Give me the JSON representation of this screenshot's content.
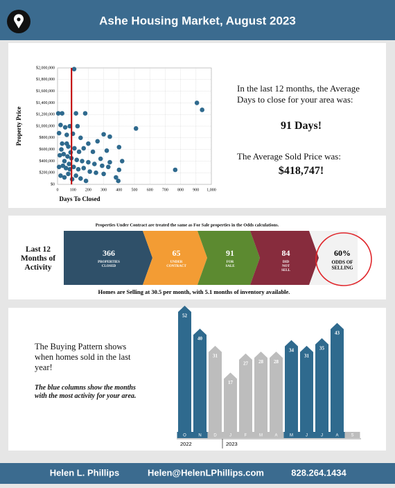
{
  "header": {
    "title": "Ashe Housing Market, August 2023"
  },
  "stats": {
    "days_intro": "In the last 12 months, the Average Days to close for your area was:",
    "days": "91 Days!",
    "price_intro": "The Average Sold Price was:",
    "price": "$418,747!"
  },
  "activity": {
    "note": "Properties Under Contract are treated the same as For Sale properties in the Odds calculations.",
    "label": "Last 12 Months of Activity",
    "steps": [
      {
        "value": "366",
        "label": "PROPERTIES CLOSED",
        "color": "#2f5069"
      },
      {
        "value": "65",
        "label": "UNDER CONTRACT",
        "color": "#f39c34"
      },
      {
        "value": "91",
        "label": "FOR SALE",
        "color": "#5c8a30"
      },
      {
        "value": "84",
        "label": "DID NOT SELL",
        "color": "#872c3d"
      }
    ],
    "odds": {
      "value": "60%",
      "label": "ODDS OF SELLING"
    },
    "summary": "Homes are Selling at 30.5 per month, with 5.1 months of inventory available."
  },
  "pattern": {
    "text": "The Buying Pattern shows when homes sold in the last year!",
    "note": "The blue columns show the months with the most activity for your area."
  },
  "footer": {
    "name": "Helen L. Phillips",
    "email": "Helen@HelenLPhillips.com",
    "phone": "828.264.1434"
  },
  "chart_data": [
    {
      "type": "scatter",
      "x_label": "Days To Closed",
      "y_label": "Property Price",
      "color": "#2f6a8e",
      "reference_x": 91,
      "reference_color": "#c00000",
      "xlim": [
        0,
        1000
      ],
      "xticks": [
        0,
        100,
        200,
        300,
        400,
        500,
        600,
        700,
        800,
        900,
        {
          "value": 1000,
          "label": "1,000"
        }
      ],
      "ylim": [
        0,
        2000000
      ],
      "yticks": [
        {
          "value": 0,
          "label": "$0"
        },
        {
          "value": 200000,
          "label": "$200,000"
        },
        {
          "value": 400000,
          "label": "$400,000"
        },
        {
          "value": 600000,
          "label": "$600,000"
        },
        {
          "value": 800000,
          "label": "$800,000"
        },
        {
          "value": 1000000,
          "label": "$1,000,000"
        },
        {
          "value": 1200000,
          "label": "$1,200,000"
        },
        {
          "value": 1400000,
          "label": "$1,400,000"
        },
        {
          "value": 1600000,
          "label": "$1,600,000"
        },
        {
          "value": 1800000,
          "label": "$1,800,000"
        },
        {
          "value": 2000000,
          "label": "$2,000,000"
        }
      ],
      "grid": true,
      "x": [
        108,
        5,
        30,
        120,
        180,
        20,
        50,
        80,
        130,
        300,
        340,
        510,
        10,
        60,
        100,
        150,
        200,
        260,
        320,
        400,
        30,
        70,
        110,
        140,
        170,
        230,
        280,
        340,
        420,
        330,
        15,
        40,
        65,
        90,
        125,
        160,
        200,
        240,
        290,
        400,
        10,
        35,
        55,
        80,
        105,
        135,
        170,
        210,
        250,
        300,
        380,
        395,
        20,
        45,
        70,
        95,
        120,
        150,
        185,
        765,
        906,
        940,
        60,
        45,
        75,
        25,
        85
      ],
      "y": [
        1980000,
        1220000,
        1220000,
        1220000,
        1220000,
        1020000,
        980000,
        1000000,
        1000000,
        860000,
        820000,
        960000,
        880000,
        850000,
        870000,
        800000,
        700000,
        740000,
        580000,
        640000,
        700000,
        650000,
        620000,
        560000,
        620000,
        560000,
        440000,
        380000,
        400000,
        300000,
        500000,
        520000,
        480000,
        450000,
        420000,
        400000,
        380000,
        350000,
        320000,
        250000,
        300000,
        320000,
        280000,
        260000,
        300000,
        260000,
        280000,
        220000,
        200000,
        180000,
        120000,
        60000,
        150000,
        120000,
        180000,
        90000,
        150000,
        100000,
        60000,
        250000,
        1400000,
        1280000,
        700000,
        400000,
        350000,
        600000,
        550000
      ]
    },
    {
      "type": "bar",
      "categories": [
        "O",
        "N",
        "D",
        "J",
        "F",
        "M",
        "A",
        "M",
        "J",
        "J",
        "A",
        "S"
      ],
      "values": [
        52,
        40,
        31,
        17,
        27,
        28,
        28,
        34,
        31,
        35,
        43,
        null
      ],
      "colors": [
        "#2f6a8e",
        "#2f6a8e",
        "#bdbdbd",
        "#bdbdbd",
        "#bdbdbd",
        "#bdbdbd",
        "#bdbdbd",
        "#2f6a8e",
        "#2f6a8e",
        "#2f6a8e",
        "#2f6a8e",
        "#bdbdbd"
      ],
      "ylim": [
        -14,
        56
      ],
      "groups": [
        {
          "label": "2022",
          "start": 0
        },
        {
          "label": "2023",
          "start": 3
        }
      ]
    }
  ]
}
